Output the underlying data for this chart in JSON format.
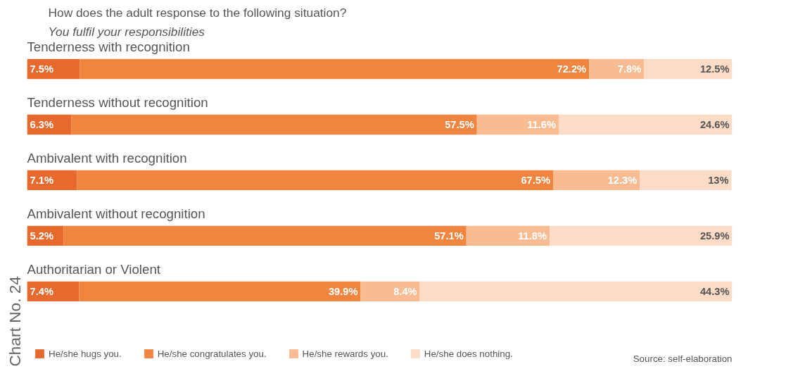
{
  "chart_data": {
    "type": "bar",
    "orientation": "horizontal",
    "stacked": true,
    "title": "How does the adult response to the following situation?",
    "subtitle": "You fulfil your responsibilities",
    "categories": [
      "Tenderness with recognition",
      "Tenderness without recognition",
      "Ambivalent with recognition",
      "Ambivalent without recognition",
      "Authoritarian or Violent"
    ],
    "series": [
      {
        "name": "He/she hugs you.",
        "color": "#e8692e",
        "values": [
          7.5,
          6.3,
          7.1,
          5.2,
          7.4
        ],
        "value_labels": [
          "7.5%",
          "6.3%",
          "7.1%",
          "5.2%",
          "7.4%"
        ]
      },
      {
        "name": "He/she congratulates you.",
        "color": "#f08540",
        "values": [
          72.2,
          57.5,
          67.5,
          57.1,
          39.9
        ],
        "value_labels": [
          "72.2%",
          "57.5%",
          "67.5%",
          "57.1%",
          "39.9%"
        ]
      },
      {
        "name": "He/she rewards you.",
        "color": "#f8bb92",
        "values": [
          7.8,
          11.6,
          12.3,
          11.8,
          8.4
        ],
        "value_labels": [
          "7.8%",
          "11.6%",
          "12.3%",
          "11.8%",
          "8.4%"
        ]
      },
      {
        "name": "He/she does nothing.",
        "color": "#fcdcc6",
        "values": [
          12.5,
          24.6,
          13,
          25.9,
          44.3
        ],
        "value_labels": [
          "12.5%",
          "24.6%",
          "13%",
          "25.9%",
          "44.3%"
        ]
      }
    ],
    "legend": "bottom left",
    "tick_labels": false,
    "annotations": [
      "Chart No. 24",
      "Source: self-elaboration"
    ]
  }
}
